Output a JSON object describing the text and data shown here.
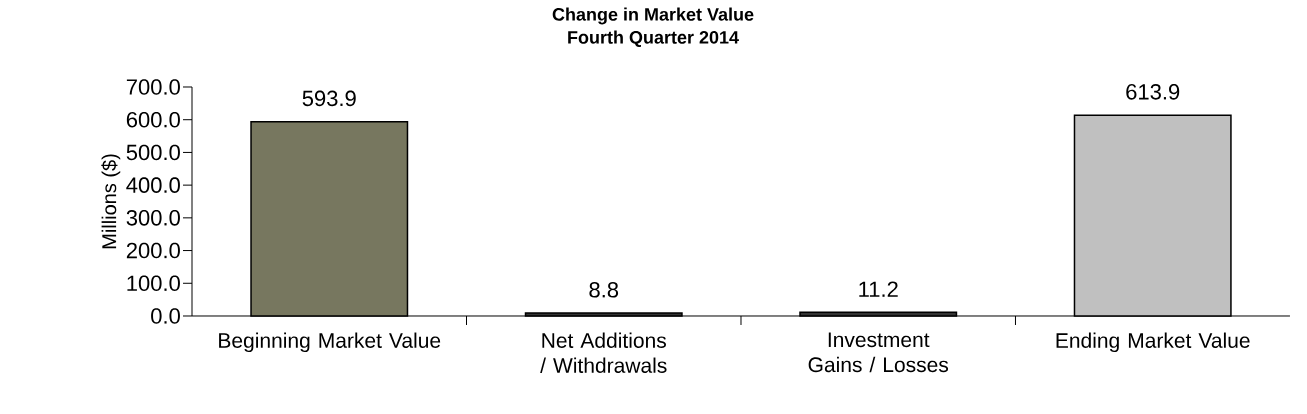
{
  "chart_data": {
    "type": "bar",
    "title": "Change in Market Value",
    "subtitle": "Fourth Quarter 2014",
    "ylabel": "Millions ($)",
    "categories": [
      "Beginning Market Value",
      "Net Additions / Withdrawals",
      "Investment Gains / Losses",
      "Ending Market Value"
    ],
    "values": [
      593.9,
      8.8,
      11.2,
      613.9
    ],
    "colors": [
      "#77775f",
      "#333333",
      "#333333",
      "#c0c0c0"
    ],
    "ylim": [
      0,
      700
    ],
    "yticks": [
      {
        "value": 0,
        "label": "0.0"
      },
      {
        "value": 100,
        "label": "100.0"
      },
      {
        "value": 200,
        "label": "200.0"
      },
      {
        "value": 300,
        "label": "300.0"
      },
      {
        "value": 400,
        "label": "400.0"
      },
      {
        "value": 500,
        "label": "500.0"
      },
      {
        "value": 600,
        "label": "600.0"
      },
      {
        "value": 700,
        "label": "700.0"
      }
    ],
    "data_labels": true
  }
}
